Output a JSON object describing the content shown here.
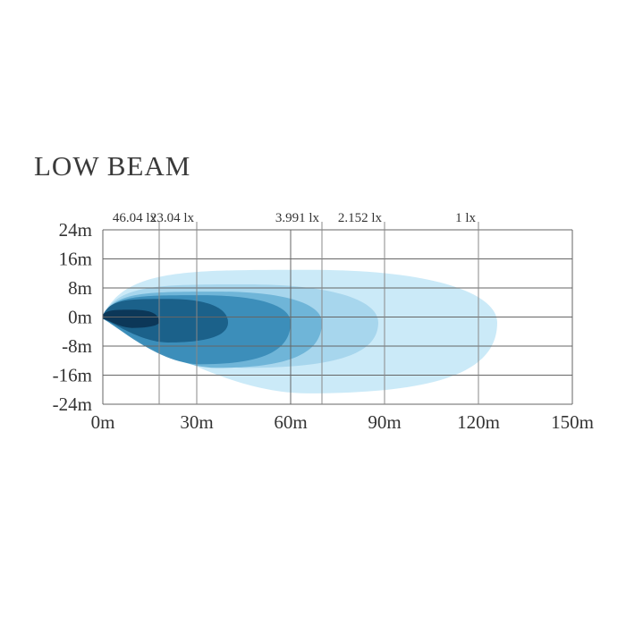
{
  "chart_data": {
    "type": "area",
    "title": "LOW BEAM",
    "xlabel": "",
    "ylabel": "",
    "x_ticks": [
      "0m",
      "30m",
      "60m",
      "90m",
      "120m",
      "150m"
    ],
    "y_ticks": [
      "24m",
      "16m",
      "8m",
      "0m",
      "-8m",
      "-16m",
      "-24m"
    ],
    "xlim": [
      0,
      150
    ],
    "ylim": [
      -24,
      24
    ],
    "grid": true,
    "x_grid_step": 30,
    "y_grid_step": 8,
    "colors": [
      "#c9e9f8",
      "#a5d4ec",
      "#6cb3d6",
      "#3a8db8",
      "#1a5f88",
      "#0b3556"
    ],
    "series": [
      {
        "name": "1 lx",
        "reach": 126,
        "y_top": 13,
        "y_bottom": -21,
        "label_x": 120
      },
      {
        "name": "2.152 lx",
        "reach": 88,
        "y_top": 9,
        "y_bottom": -14,
        "label_x": 90
      },
      {
        "name": "3.991 lx",
        "reach": 70,
        "y_top": 7,
        "y_bottom": -14,
        "label_x": 70
      },
      {
        "name": "23.04 lx",
        "reach": 60,
        "y_top": 6,
        "y_bottom": -13,
        "label_x": 30
      },
      {
        "name": "46.04 lx",
        "reach": 40,
        "y_top": 5,
        "y_bottom": -7,
        "label_x": 18
      },
      {
        "name": "",
        "reach": 18,
        "y_top": 2,
        "y_bottom": -3
      }
    ]
  }
}
